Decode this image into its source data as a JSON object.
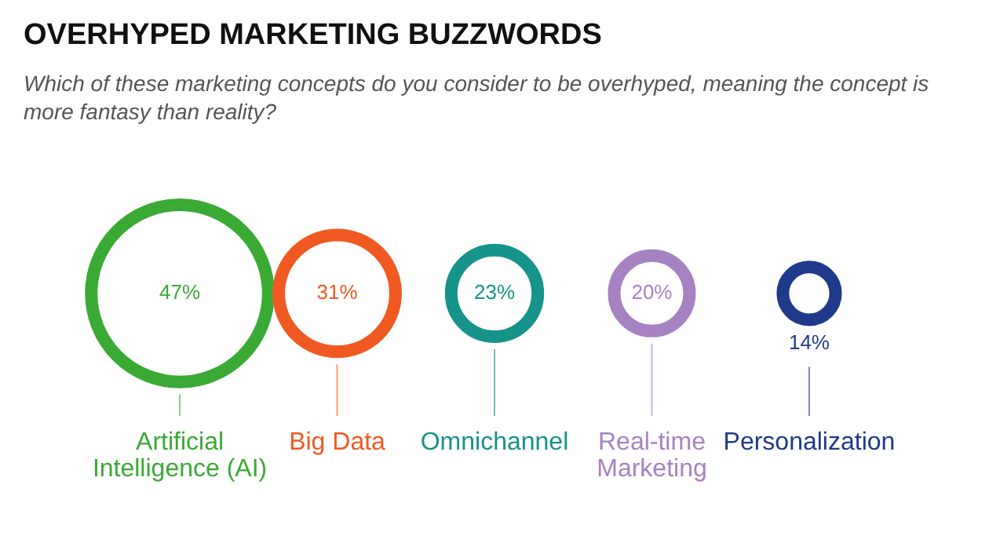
{
  "chart_data": {
    "type": "other",
    "title": "OVERHYPED MARKETING BUZZWORDS",
    "subtitle": "Which of these marketing concepts do you consider to be overhyped, meaning the concept is more fantasy than reality?",
    "categories": [
      "Artificial Intelligence (AI)",
      "Big Data",
      "Omnichannel",
      "Real-time Marketing",
      "Personalization"
    ],
    "values": [
      47,
      31,
      23,
      20,
      14
    ],
    "value_labels": [
      "47%",
      "31%",
      "23%",
      "20%",
      "14%"
    ],
    "colors": [
      "#3aaa35",
      "#f05a22",
      "#16938a",
      "#a782c3",
      "#1f3a8a"
    ]
  }
}
